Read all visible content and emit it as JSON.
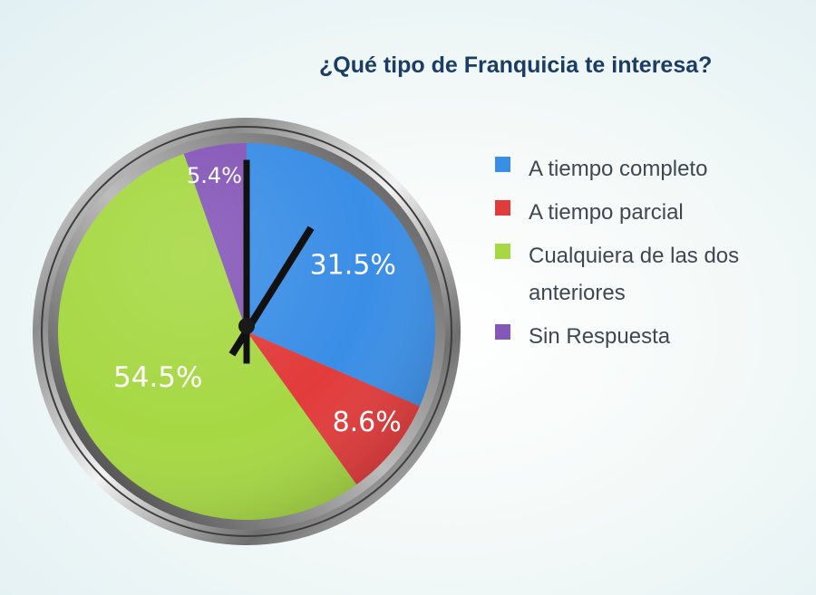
{
  "chart_data": {
    "type": "pie",
    "title": "¿Qué tipo de Franquicia te interesa?",
    "categories": [
      "A tiempo completo",
      "A tiempo parcial",
      "Cualquiera de las dos anteriores",
      "Sin Respuesta"
    ],
    "values": [
      31.5,
      8.6,
      54.5,
      5.4
    ],
    "data_labels": [
      "31.5%",
      "8.6%",
      "54.5%",
      "5.4%"
    ],
    "colors": [
      "#3a8ee6",
      "#e23b3b",
      "#a6d843",
      "#8557b8"
    ],
    "legend_position": "right",
    "start_angle": "12 o'clock",
    "direction": "clockwise"
  }
}
